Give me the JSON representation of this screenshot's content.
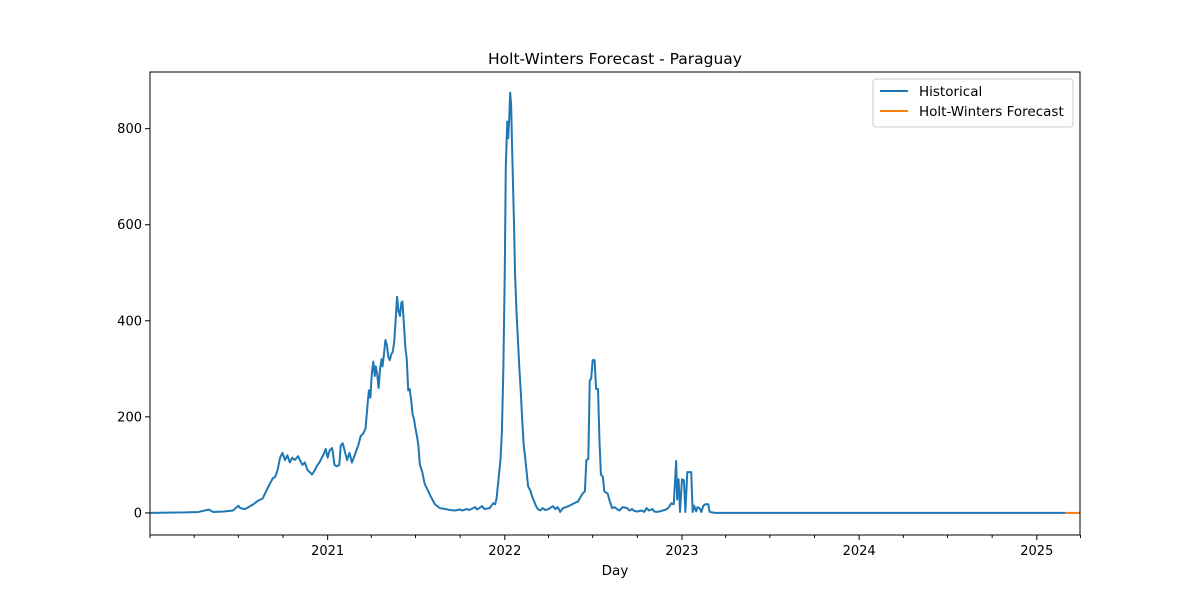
{
  "chart_data": {
    "type": "line",
    "title": "Holt-Winters Forecast - Paraguay",
    "xlabel": "Day",
    "ylabel": "",
    "xlim": [
      "2020-01-01",
      "2025-03-31"
    ],
    "ylim": [
      -46,
      918
    ],
    "y_ticks": [
      0,
      200,
      400,
      600,
      800
    ],
    "x_major_ticks": [
      {
        "date": "2021-01-01",
        "label": "2021"
      },
      {
        "date": "2022-01-01",
        "label": "2022"
      },
      {
        "date": "2023-01-01",
        "label": "2023"
      },
      {
        "date": "2024-01-01",
        "label": "2024"
      },
      {
        "date": "2025-01-01",
        "label": "2025"
      }
    ],
    "x_minor_ticks": [
      "2020-01-01",
      "2020-04-01",
      "2020-07-01",
      "2020-10-01",
      "2021-04-01",
      "2021-07-01",
      "2021-10-01",
      "2022-04-01",
      "2022-07-01",
      "2022-10-01",
      "2023-04-01",
      "2023-07-01",
      "2023-10-01",
      "2024-04-01",
      "2024-07-01",
      "2024-10-01",
      "2025-04-01"
    ],
    "grid": false,
    "legend_position": "top-right",
    "series": [
      {
        "name": "Historical",
        "color": "#1f77b4",
        "points": [
          [
            "2020-01-01",
            0
          ],
          [
            "2020-03-15",
            1
          ],
          [
            "2020-04-10",
            2
          ],
          [
            "2020-05-01",
            7
          ],
          [
            "2020-05-10",
            2
          ],
          [
            "2020-06-01",
            3
          ],
          [
            "2020-06-20",
            5
          ],
          [
            "2020-07-01",
            15
          ],
          [
            "2020-07-05",
            10
          ],
          [
            "2020-07-15",
            8
          ],
          [
            "2020-08-01",
            18
          ],
          [
            "2020-08-10",
            25
          ],
          [
            "2020-08-20",
            30
          ],
          [
            "2020-09-01",
            55
          ],
          [
            "2020-09-10",
            72
          ],
          [
            "2020-09-15",
            75
          ],
          [
            "2020-09-20",
            90
          ],
          [
            "2020-09-25",
            115
          ],
          [
            "2020-09-30",
            125
          ],
          [
            "2020-10-05",
            110
          ],
          [
            "2020-10-10",
            120
          ],
          [
            "2020-10-15",
            105
          ],
          [
            "2020-10-20",
            115
          ],
          [
            "2020-10-25",
            110
          ],
          [
            "2020-11-01",
            118
          ],
          [
            "2020-11-10",
            100
          ],
          [
            "2020-11-15",
            105
          ],
          [
            "2020-11-20",
            90
          ],
          [
            "2020-11-25",
            85
          ],
          [
            "2020-11-30",
            80
          ],
          [
            "2020-12-05",
            88
          ],
          [
            "2020-12-10",
            98
          ],
          [
            "2020-12-15",
            105
          ],
          [
            "2020-12-20",
            115
          ],
          [
            "2020-12-25",
            125
          ],
          [
            "2020-12-28",
            133
          ],
          [
            "2021-01-01",
            115
          ],
          [
            "2021-01-05",
            130
          ],
          [
            "2021-01-10",
            135
          ],
          [
            "2021-01-12",
            125
          ],
          [
            "2021-01-15",
            100
          ],
          [
            "2021-01-20",
            97
          ],
          [
            "2021-01-25",
            100
          ],
          [
            "2021-01-28",
            140
          ],
          [
            "2021-02-01",
            145
          ],
          [
            "2021-02-05",
            130
          ],
          [
            "2021-02-10",
            110
          ],
          [
            "2021-02-15",
            125
          ],
          [
            "2021-02-20",
            105
          ],
          [
            "2021-02-25",
            118
          ],
          [
            "2021-03-01",
            130
          ],
          [
            "2021-03-05",
            140
          ],
          [
            "2021-03-10",
            160
          ],
          [
            "2021-03-15",
            165
          ],
          [
            "2021-03-20",
            175
          ],
          [
            "2021-03-25",
            235
          ],
          [
            "2021-03-27",
            255
          ],
          [
            "2021-03-30",
            240
          ],
          [
            "2021-04-02",
            290
          ],
          [
            "2021-04-05",
            315
          ],
          [
            "2021-04-08",
            285
          ],
          [
            "2021-04-10",
            305
          ],
          [
            "2021-04-13",
            290
          ],
          [
            "2021-04-16",
            260
          ],
          [
            "2021-04-19",
            300
          ],
          [
            "2021-04-22",
            320
          ],
          [
            "2021-04-24",
            305
          ],
          [
            "2021-04-27",
            330
          ],
          [
            "2021-04-30",
            360
          ],
          [
            "2021-05-03",
            350
          ],
          [
            "2021-05-06",
            325
          ],
          [
            "2021-05-09",
            318
          ],
          [
            "2021-05-12",
            330
          ],
          [
            "2021-05-15",
            335
          ],
          [
            "2021-05-18",
            355
          ],
          [
            "2021-05-21",
            400
          ],
          [
            "2021-05-24",
            450
          ],
          [
            "2021-05-27",
            420
          ],
          [
            "2021-05-30",
            410
          ],
          [
            "2021-06-02",
            438
          ],
          [
            "2021-06-04",
            440
          ],
          [
            "2021-06-07",
            395
          ],
          [
            "2021-06-10",
            345
          ],
          [
            "2021-06-13",
            320
          ],
          [
            "2021-06-16",
            255
          ],
          [
            "2021-06-19",
            258
          ],
          [
            "2021-06-22",
            235
          ],
          [
            "2021-06-25",
            205
          ],
          [
            "2021-06-28",
            195
          ],
          [
            "2021-07-01",
            175
          ],
          [
            "2021-07-04",
            160
          ],
          [
            "2021-07-07",
            140
          ],
          [
            "2021-07-10",
            100
          ],
          [
            "2021-07-15",
            85
          ],
          [
            "2021-07-20",
            60
          ],
          [
            "2021-07-25",
            50
          ],
          [
            "2021-08-01",
            35
          ],
          [
            "2021-08-10",
            18
          ],
          [
            "2021-08-20",
            10
          ],
          [
            "2021-09-01",
            8
          ],
          [
            "2021-09-10",
            6
          ],
          [
            "2021-09-20",
            5
          ],
          [
            "2021-10-01",
            7
          ],
          [
            "2021-10-05",
            5
          ],
          [
            "2021-10-15",
            8
          ],
          [
            "2021-10-20",
            6
          ],
          [
            "2021-11-01",
            12
          ],
          [
            "2021-11-05",
            7
          ],
          [
            "2021-11-15",
            14
          ],
          [
            "2021-11-20",
            8
          ],
          [
            "2021-12-01",
            10
          ],
          [
            "2021-12-08",
            20
          ],
          [
            "2021-12-12",
            18
          ],
          [
            "2021-12-15",
            30
          ],
          [
            "2021-12-18",
            60
          ],
          [
            "2021-12-20",
            80
          ],
          [
            "2021-12-23",
            110
          ],
          [
            "2021-12-26",
            170
          ],
          [
            "2021-12-29",
            300
          ],
          [
            "2022-01-01",
            510
          ],
          [
            "2022-01-03",
            720
          ],
          [
            "2022-01-06",
            815
          ],
          [
            "2022-01-08",
            780
          ],
          [
            "2022-01-10",
            820
          ],
          [
            "2022-01-12",
            875
          ],
          [
            "2022-01-14",
            850
          ],
          [
            "2022-01-16",
            760
          ],
          [
            "2022-01-18",
            680
          ],
          [
            "2022-01-20",
            600
          ],
          [
            "2022-01-22",
            500
          ],
          [
            "2022-01-25",
            420
          ],
          [
            "2022-01-28",
            360
          ],
          [
            "2022-01-31",
            300
          ],
          [
            "2022-02-03",
            250
          ],
          [
            "2022-02-06",
            190
          ],
          [
            "2022-02-09",
            140
          ],
          [
            "2022-02-12",
            115
          ],
          [
            "2022-02-15",
            85
          ],
          [
            "2022-02-18",
            55
          ],
          [
            "2022-02-22",
            48
          ],
          [
            "2022-02-26",
            35
          ],
          [
            "2022-03-02",
            25
          ],
          [
            "2022-03-06",
            15
          ],
          [
            "2022-03-10",
            8
          ],
          [
            "2022-03-15",
            5
          ],
          [
            "2022-03-20",
            10
          ],
          [
            "2022-03-25",
            6
          ],
          [
            "2022-04-01",
            8
          ],
          [
            "2022-04-10",
            14
          ],
          [
            "2022-04-15",
            8
          ],
          [
            "2022-04-20",
            12
          ],
          [
            "2022-04-25",
            2
          ],
          [
            "2022-05-01",
            10
          ],
          [
            "2022-05-10",
            13
          ],
          [
            "2022-05-20",
            18
          ],
          [
            "2022-06-01",
            24
          ],
          [
            "2022-06-10",
            40
          ],
          [
            "2022-06-15",
            45
          ],
          [
            "2022-06-18",
            110
          ],
          [
            "2022-06-22",
            112
          ],
          [
            "2022-06-25",
            275
          ],
          [
            "2022-06-28",
            280
          ],
          [
            "2022-07-01",
            318
          ],
          [
            "2022-07-05",
            318
          ],
          [
            "2022-07-08",
            258
          ],
          [
            "2022-07-12",
            258
          ],
          [
            "2022-07-15",
            150
          ],
          [
            "2022-07-18",
            80
          ],
          [
            "2022-07-22",
            75
          ],
          [
            "2022-07-25",
            45
          ],
          [
            "2022-08-01",
            40
          ],
          [
            "2022-08-05",
            25
          ],
          [
            "2022-08-10",
            10
          ],
          [
            "2022-08-15",
            12
          ],
          [
            "2022-08-20",
            8
          ],
          [
            "2022-08-25",
            5
          ],
          [
            "2022-09-01",
            12
          ],
          [
            "2022-09-10",
            10
          ],
          [
            "2022-09-15",
            5
          ],
          [
            "2022-09-20",
            8
          ],
          [
            "2022-09-25",
            4
          ],
          [
            "2022-10-01",
            3
          ],
          [
            "2022-10-10",
            5
          ],
          [
            "2022-10-15",
            2
          ],
          [
            "2022-10-20",
            10
          ],
          [
            "2022-10-25",
            5
          ],
          [
            "2022-11-01",
            8
          ],
          [
            "2022-11-05",
            3
          ],
          [
            "2022-11-10",
            2
          ],
          [
            "2022-11-20",
            4
          ],
          [
            "2022-12-01",
            8
          ],
          [
            "2022-12-05",
            12
          ],
          [
            "2022-12-10",
            20
          ],
          [
            "2022-12-15",
            18
          ],
          [
            "2022-12-20",
            108
          ],
          [
            "2022-12-22",
            28
          ],
          [
            "2022-12-25",
            70
          ],
          [
            "2022-12-28",
            2
          ],
          [
            "2023-01-01",
            70
          ],
          [
            "2023-01-05",
            68
          ],
          [
            "2023-01-08",
            2
          ],
          [
            "2023-01-12",
            85
          ],
          [
            "2023-01-20",
            85
          ],
          [
            "2023-01-23",
            2
          ],
          [
            "2023-01-26",
            15
          ],
          [
            "2023-01-30",
            3
          ],
          [
            "2023-02-02",
            12
          ],
          [
            "2023-02-06",
            10
          ],
          [
            "2023-02-10",
            2
          ],
          [
            "2023-02-14",
            15
          ],
          [
            "2023-02-18",
            18
          ],
          [
            "2023-02-24",
            18
          ],
          [
            "2023-02-27",
            2
          ],
          [
            "2023-03-10",
            0
          ],
          [
            "2023-04-01",
            0
          ],
          [
            "2024-01-01",
            0
          ],
          [
            "2025-01-01",
            0
          ],
          [
            "2025-03-01",
            0
          ]
        ]
      },
      {
        "name": "Holt-Winters Forecast",
        "color": "#ff7f0e",
        "points": [
          [
            "2025-03-01",
            0
          ],
          [
            "2025-03-31",
            0
          ]
        ]
      }
    ]
  }
}
